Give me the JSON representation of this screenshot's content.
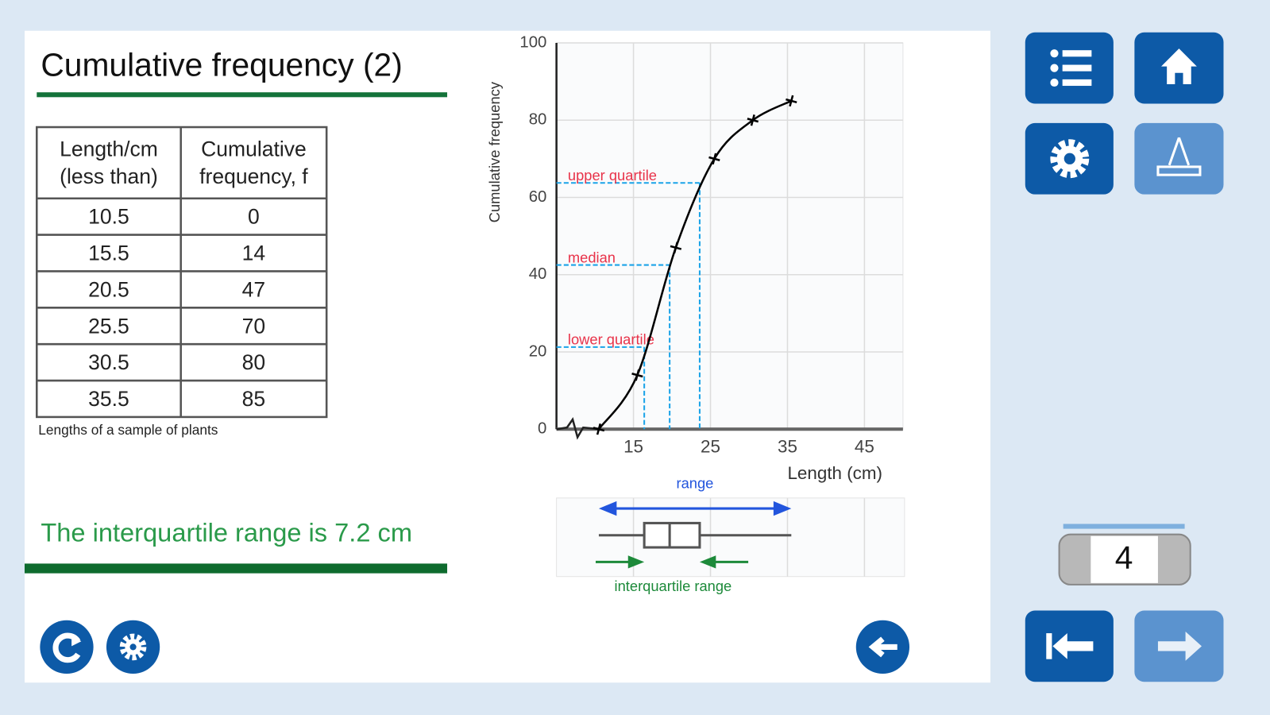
{
  "header": {
    "title": "Cumulative frequency (2)"
  },
  "table": {
    "columns": [
      [
        "Length/cm",
        "(less than)"
      ],
      [
        "Cumulative",
        "frequency, f"
      ]
    ],
    "rows": [
      [
        10.5,
        0
      ],
      [
        15.5,
        14
      ],
      [
        20.5,
        47
      ],
      [
        25.5,
        70
      ],
      [
        30.5,
        80
      ],
      [
        35.5,
        85
      ]
    ],
    "caption": "Lengths of a sample of plants"
  },
  "result": "The interquartile range is 7.2 cm",
  "chart_data": {
    "type": "line",
    "ylabel": "Cumulative frequency",
    "xlabel": "Length (cm)",
    "xlim": [
      5,
      50
    ],
    "xticks": [
      15,
      25,
      35,
      45
    ],
    "ylim": [
      0,
      100
    ],
    "yticks": [
      0,
      20,
      40,
      60,
      80,
      100
    ],
    "grid": true,
    "series": [
      {
        "color": "#000000",
        "x": [
          10.5,
          15.5,
          20.5,
          25.5,
          30.5,
          35.5
        ],
        "values": [
          0,
          14,
          47,
          70,
          80,
          85
        ]
      }
    ],
    "quartiles": [
      {
        "label": "lower quartile",
        "x": 16.4,
        "value": 21.25
      },
      {
        "label": "median",
        "x": 19.7,
        "value": 42.5
      },
      {
        "label": "upper quartile",
        "x": 23.6,
        "value": 63.75
      }
    ],
    "boxplot": {
      "range_label": "range",
      "iqr_label": "interquartile range",
      "min": 10.5,
      "q1": 16.4,
      "median": 19.7,
      "q3": 23.6,
      "max": 35.5
    }
  },
  "navigation": {
    "page": 4
  }
}
